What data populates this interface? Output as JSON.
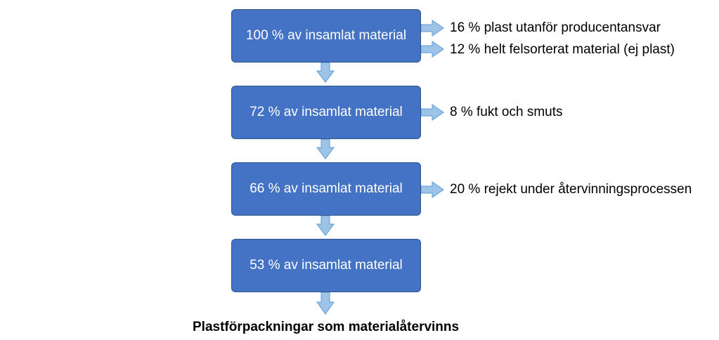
{
  "flow": {
    "stages": [
      {
        "label": "100 % av insamlat material"
      },
      {
        "label": "72 % av insamlat material"
      },
      {
        "label": "66 % av insamlat material"
      },
      {
        "label": "53 % av insamlat material"
      }
    ],
    "losses": [
      {
        "label": "16 % plast utanför producentansvar"
      },
      {
        "label": "12 % helt felsorterat material (ej plast)"
      },
      {
        "label": "8 % fukt och smuts"
      },
      {
        "label": "20 % rejekt under återvinningsprocessen"
      }
    ],
    "output": "Plastförpackningar som materialåtervinns"
  },
  "colors": {
    "box_fill": "#4472c4",
    "box_border": "#2f528f",
    "arrow_fill": "#9dc3e6",
    "arrow_stroke": "#5b9bd5"
  }
}
